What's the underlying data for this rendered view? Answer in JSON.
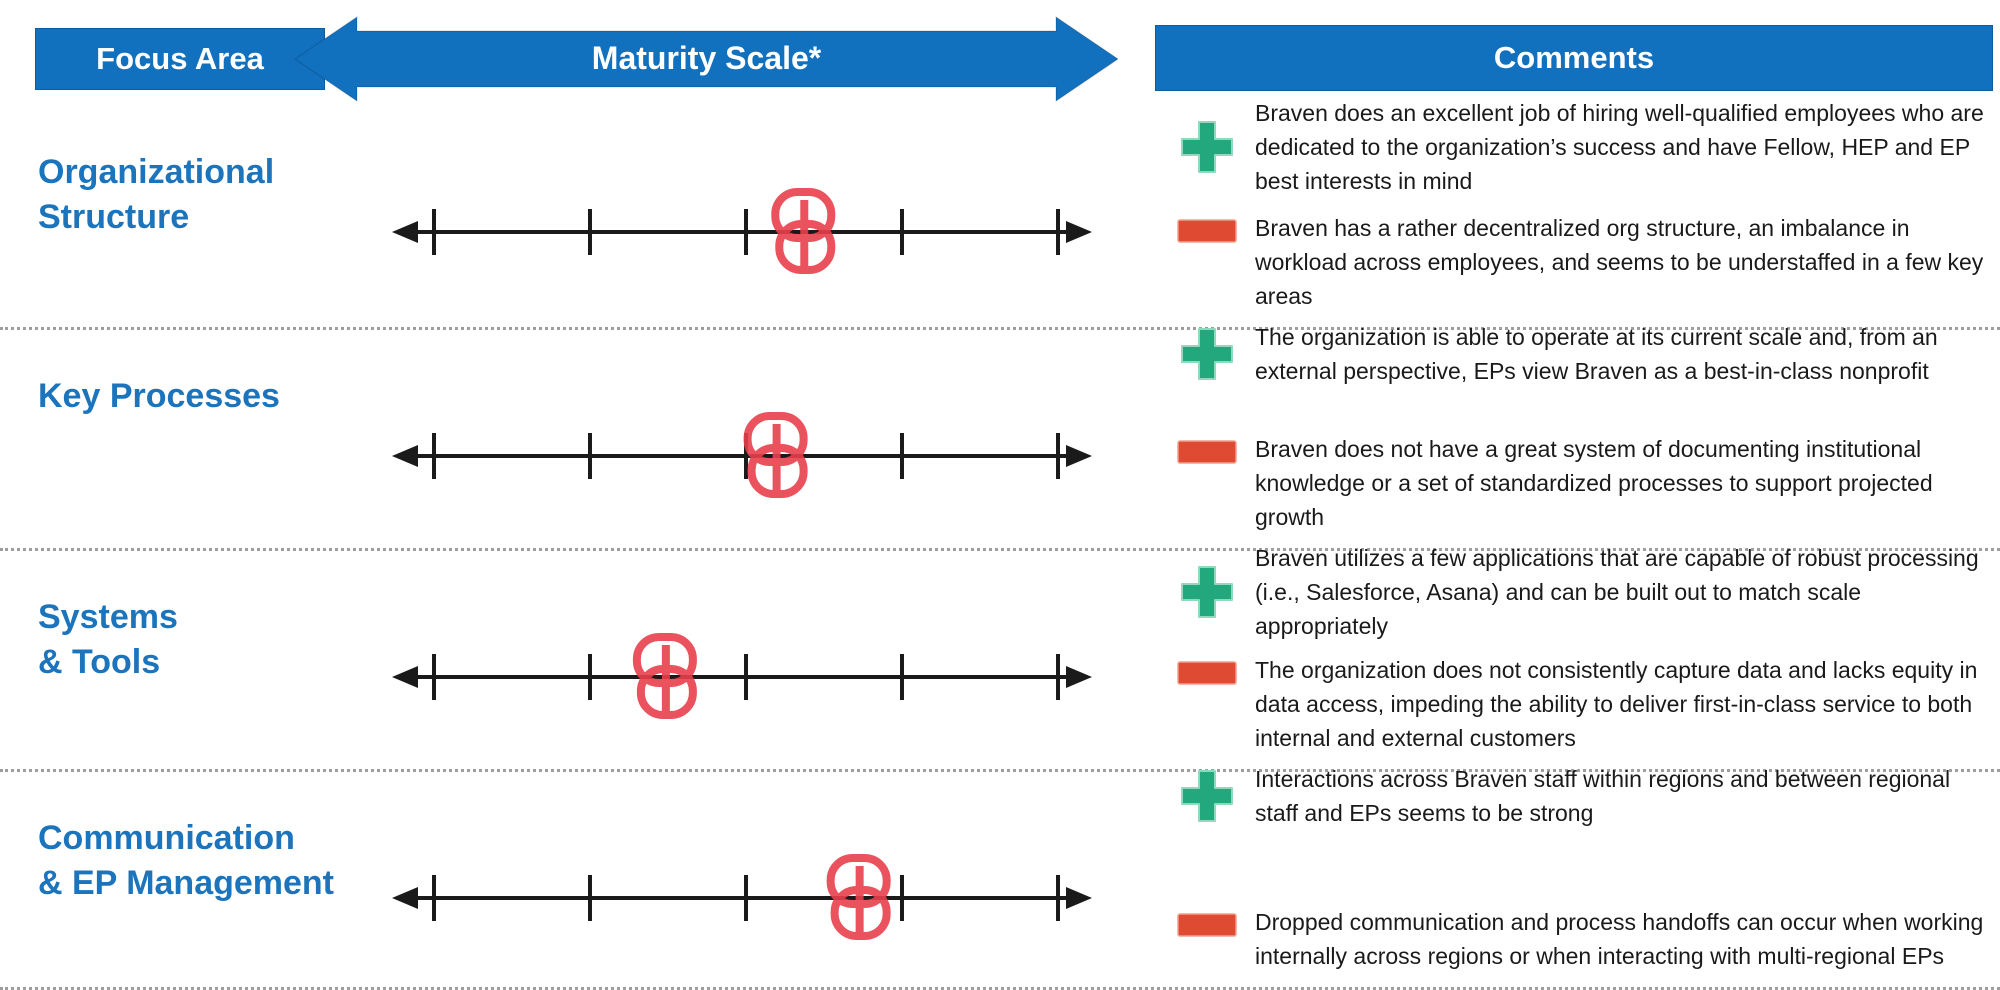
{
  "header": {
    "focus_area": "Focus Area",
    "maturity_scale": "Maturity Scale*",
    "comments": "Comments"
  },
  "colors": {
    "header_blue": "#1271BE",
    "label_blue": "#1B74BC",
    "positive_green": "#23A87D",
    "negative_red": "#DF4A32",
    "marker_red": "#E8404C",
    "scale_black": "#1a1a1a",
    "separator_gray": "#9e9e9e"
  },
  "icons": {
    "positive": "plus-icon",
    "negative": "minus-icon",
    "marker": "scribble-circle-icon",
    "scale": "double-arrow-icon"
  },
  "scale": {
    "tick_count": 5,
    "style": "double-headed horizontal arrow with 5 ticks"
  },
  "rows": [
    {
      "label_line1": "Organizational",
      "label_line2": "Structure",
      "marker_position_pct": 59,
      "positive": "Braven does an excellent job of hiring well-qualified employees who are dedicated to the organization’s success and have Fellow, HEP and EP best interests in mind",
      "negative": "Braven has a rather decentralized org structure, an imbalance in workload across employees, and seems to be understaffed in a few key areas"
    },
    {
      "label_line1": "Key Processes",
      "label_line2": "",
      "marker_position_pct": 55,
      "positive": "The organization is able to operate at its current scale and, from an external perspective, EPs view Braven as a best-in-class nonprofit",
      "negative": "Braven does not have a great system of documenting institutional knowledge or a set of standardized processes to support projected growth"
    },
    {
      "label_line1": "Systems",
      "label_line2": "& Tools",
      "marker_position_pct": 39,
      "positive": "Braven utilizes a few applications that are capable of robust processing (i.e., Salesforce, Asana) and can be built out to match scale appropriately",
      "negative": "The organization does not consistently capture data and lacks equity in data access, impeding the ability to deliver first-in-class service to both internal and external customers"
    },
    {
      "label_line1": "Communication",
      "label_line2": "& EP Management",
      "marker_position_pct": 67,
      "positive": "Interactions across Braven staff within regions and between regional staff and EPs seems to be strong",
      "negative": "Dropped communication and process handoffs can occur when working internally across regions or when interacting with multi-regional EPs"
    }
  ]
}
